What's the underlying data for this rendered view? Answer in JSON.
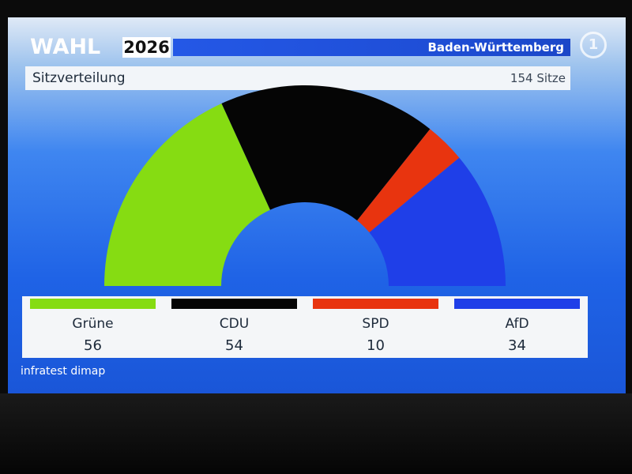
{
  "header": {
    "wahl": "WAHL",
    "year": "2026",
    "region": "Baden-Württemberg",
    "logo_symbol": "1"
  },
  "subheader": {
    "title": "Sitzverteilung",
    "total": "154 Sitze"
  },
  "chart_data": {
    "type": "pie",
    "subtype": "half-donut",
    "title": "Sitzverteilung",
    "total_seats": 154,
    "categories": [
      "Grüne",
      "CDU",
      "SPD",
      "AfD"
    ],
    "values": [
      56,
      54,
      10,
      34
    ],
    "colors": [
      "#86dc12",
      "#050505",
      "#e8340f",
      "#1f3fe8"
    ],
    "legend_position": "bottom"
  },
  "legend": {
    "items": [
      {
        "name": "Grüne",
        "seats": "56",
        "color": "#86dc12"
      },
      {
        "name": "CDU",
        "seats": "54",
        "color": "#050505"
      },
      {
        "name": "SPD",
        "seats": "10",
        "color": "#e8340f"
      },
      {
        "name": "AfD",
        "seats": "34",
        "color": "#1f3fe8"
      }
    ]
  },
  "source": "infratest dimap"
}
